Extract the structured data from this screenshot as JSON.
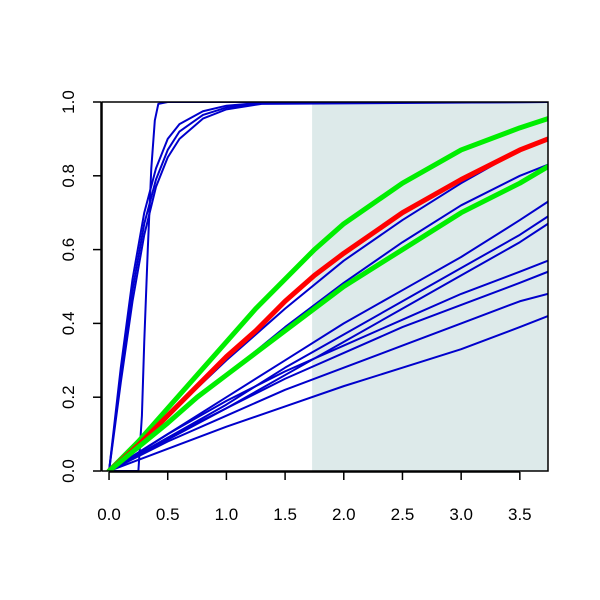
{
  "chart_data": {
    "type": "line",
    "title": "",
    "xlabel": "",
    "ylabel": "",
    "xlim": [
      -0.06,
      3.74
    ],
    "ylim": [
      0.0,
      1.0
    ],
    "x_ticks": [
      0.0,
      0.5,
      1.0,
      1.5,
      2.0,
      2.5,
      3.0,
      3.5
    ],
    "y_ticks": [
      0.0,
      0.2,
      0.4,
      0.6,
      0.8,
      1.0
    ],
    "x_tick_labels": [
      "0.0",
      "0.5",
      "1.0",
      "1.5",
      "2.0",
      "2.5",
      "3.0",
      "3.5"
    ],
    "y_tick_labels": [
      "0.0",
      "0.2",
      "0.4",
      "0.6",
      "0.8",
      "1.0"
    ],
    "grid": false,
    "legend": "none",
    "shaded_region": {
      "x_from": 1.73,
      "x_to": 3.74,
      "color": "#ddeaea"
    },
    "colors": {
      "blue": "#0000cc",
      "red": "#ff0000",
      "green": "#00ee00"
    },
    "series": [
      {
        "color": "blue",
        "width": "thin",
        "x": [
          0,
          0.25,
          0.28,
          0.3,
          0.33,
          0.36,
          0.39,
          0.42,
          0.5,
          1.0,
          3.74
        ],
        "y": [
          0,
          0.0,
          0.15,
          0.35,
          0.6,
          0.82,
          0.95,
          0.995,
          1.0,
          1.0,
          1.0
        ]
      },
      {
        "color": "blue",
        "width": "thin",
        "x": [
          0,
          0.1,
          0.2,
          0.3,
          0.4,
          0.5,
          0.6,
          0.8,
          1.0,
          1.3,
          3.74
        ],
        "y": [
          0,
          0.28,
          0.52,
          0.7,
          0.82,
          0.9,
          0.94,
          0.975,
          0.99,
          0.998,
          1.0
        ]
      },
      {
        "color": "blue",
        "width": "thin",
        "x": [
          0,
          0.1,
          0.2,
          0.3,
          0.4,
          0.5,
          0.6,
          0.8,
          1.0,
          1.3,
          3.74
        ],
        "y": [
          0,
          0.26,
          0.49,
          0.67,
          0.79,
          0.87,
          0.92,
          0.965,
          0.985,
          0.997,
          1.0
        ]
      },
      {
        "color": "blue",
        "width": "thin",
        "x": [
          0,
          0.1,
          0.2,
          0.3,
          0.4,
          0.5,
          0.6,
          0.8,
          1.0,
          1.3,
          3.74
        ],
        "y": [
          0,
          0.24,
          0.46,
          0.64,
          0.77,
          0.85,
          0.9,
          0.955,
          0.98,
          0.995,
          1.0
        ]
      },
      {
        "color": "blue",
        "width": "thin",
        "x": [
          0,
          0.5,
          1.0,
          1.5,
          2.0,
          2.5,
          3.0,
          3.5,
          3.74
        ],
        "y": [
          0,
          0.15,
          0.3,
          0.44,
          0.57,
          0.68,
          0.78,
          0.87,
          0.9
        ]
      },
      {
        "color": "blue",
        "width": "thin",
        "x": [
          0,
          0.5,
          1.0,
          1.5,
          2.0,
          2.5,
          3.0,
          3.5,
          3.74
        ],
        "y": [
          0,
          0.13,
          0.26,
          0.39,
          0.51,
          0.62,
          0.72,
          0.8,
          0.83
        ]
      },
      {
        "color": "blue",
        "width": "thin",
        "x": [
          0,
          0.5,
          1.0,
          1.5,
          2.0,
          2.5,
          3.0,
          3.5,
          3.74
        ],
        "y": [
          0,
          0.1,
          0.2,
          0.3,
          0.4,
          0.49,
          0.58,
          0.68,
          0.73
        ]
      },
      {
        "color": "blue",
        "width": "thin",
        "x": [
          0,
          0.5,
          1.0,
          1.5,
          2.0,
          2.5,
          3.0,
          3.5,
          3.74
        ],
        "y": [
          0,
          0.09,
          0.18,
          0.28,
          0.37,
          0.46,
          0.55,
          0.64,
          0.69
        ]
      },
      {
        "color": "blue",
        "width": "thin",
        "x": [
          0,
          0.5,
          1.0,
          1.5,
          2.0,
          2.5,
          3.0,
          3.5,
          3.74
        ],
        "y": [
          0,
          0.085,
          0.17,
          0.26,
          0.35,
          0.44,
          0.53,
          0.62,
          0.67
        ]
      },
      {
        "color": "blue",
        "width": "thin",
        "x": [
          0,
          0.5,
          1.0,
          1.5,
          2.0,
          2.5,
          3.0,
          3.5,
          3.74
        ],
        "y": [
          0,
          0.1,
          0.19,
          0.27,
          0.34,
          0.41,
          0.48,
          0.54,
          0.57
        ]
      },
      {
        "color": "blue",
        "width": "thin",
        "x": [
          0,
          0.5,
          1.0,
          1.5,
          2.0,
          2.5,
          3.0,
          3.5,
          3.74
        ],
        "y": [
          0,
          0.09,
          0.17,
          0.25,
          0.32,
          0.39,
          0.45,
          0.51,
          0.54
        ]
      },
      {
        "color": "blue",
        "width": "thin",
        "x": [
          0,
          0.5,
          1.0,
          1.5,
          2.0,
          2.5,
          3.0,
          3.5,
          3.74
        ],
        "y": [
          0,
          0.08,
          0.15,
          0.22,
          0.28,
          0.34,
          0.4,
          0.46,
          0.48
        ]
      },
      {
        "color": "blue",
        "width": "thin",
        "x": [
          0,
          0.5,
          1.0,
          1.5,
          2.0,
          2.5,
          3.0,
          3.5,
          3.74
        ],
        "y": [
          0,
          0.06,
          0.12,
          0.175,
          0.23,
          0.28,
          0.33,
          0.39,
          0.42
        ]
      },
      {
        "color": "green",
        "width": "thick",
        "x": [
          0,
          0.25,
          0.5,
          0.75,
          1.0,
          1.25,
          1.5,
          1.75,
          2.0,
          2.5,
          3.0,
          3.5,
          3.74
        ],
        "y": [
          0,
          0.08,
          0.17,
          0.26,
          0.35,
          0.44,
          0.52,
          0.6,
          0.67,
          0.78,
          0.87,
          0.93,
          0.955
        ]
      },
      {
        "color": "red",
        "width": "thick",
        "x": [
          0,
          0.25,
          0.5,
          0.75,
          1.0,
          1.25,
          1.5,
          1.75,
          2.0,
          2.5,
          3.0,
          3.5,
          3.74
        ],
        "y": [
          0,
          0.07,
          0.15,
          0.23,
          0.31,
          0.38,
          0.46,
          0.53,
          0.59,
          0.7,
          0.79,
          0.87,
          0.9
        ]
      },
      {
        "color": "green",
        "width": "thick",
        "x": [
          0,
          0.25,
          0.5,
          0.75,
          1.0,
          1.25,
          1.5,
          1.75,
          2.0,
          2.5,
          3.0,
          3.5,
          3.74
        ],
        "y": [
          0,
          0.065,
          0.13,
          0.2,
          0.26,
          0.32,
          0.38,
          0.44,
          0.5,
          0.6,
          0.7,
          0.78,
          0.825
        ]
      }
    ]
  }
}
